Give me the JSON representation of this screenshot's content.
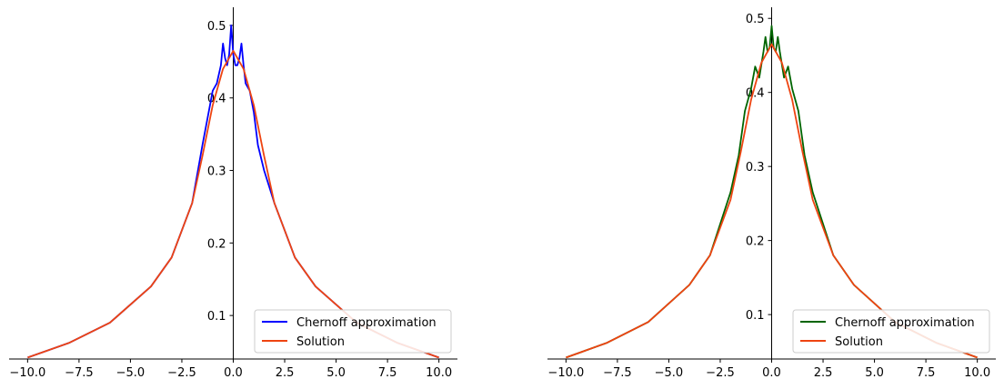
{
  "chart_data": [
    {
      "type": "line",
      "xlim": [
        -10,
        10
      ],
      "ylim": [
        0.04,
        0.525
      ],
      "xticks": [
        -10,
        -7.5,
        -5,
        -2.5,
        0,
        2.5,
        5,
        7.5,
        10
      ],
      "xtick_labels": [
        "−10.0",
        "−7.5",
        "−5.0",
        "−2.5",
        "0.0",
        "2.5",
        "5.0",
        "7.5",
        "10.0"
      ],
      "yticks": [
        0.1,
        0.2,
        0.3,
        0.4,
        0.5
      ],
      "ytick_labels": [
        "0.1",
        "0.2",
        "0.3",
        "0.4",
        "0.5"
      ],
      "spines": "left spine at x=0, bottom spine only",
      "grid": false,
      "legend_position": "lower right",
      "series": [
        {
          "name": "Chernoff approximation",
          "color": "#0000ff",
          "x": [
            -10,
            -8,
            -6,
            -4,
            -3,
            -2,
            -1.5,
            -1.2,
            -1,
            -0.8,
            -0.6,
            -0.5,
            -0.4,
            -0.3,
            -0.2,
            -0.1,
            0,
            0.1,
            0.2,
            0.3,
            0.4,
            0.5,
            0.6,
            0.8,
            1,
            1.2,
            1.5,
            2,
            3,
            4,
            6,
            8,
            10
          ],
          "y": [
            0.042,
            0.062,
            0.09,
            0.14,
            0.18,
            0.255,
            0.335,
            0.38,
            0.41,
            0.42,
            0.445,
            0.475,
            0.455,
            0.445,
            0.46,
            0.5,
            0.46,
            0.445,
            0.445,
            0.455,
            0.475,
            0.445,
            0.42,
            0.41,
            0.38,
            0.335,
            0.3,
            0.255,
            0.18,
            0.14,
            0.09,
            0.062,
            0.042
          ]
        },
        {
          "name": "Solution",
          "color": "#ee4411",
          "x": [
            -10,
            -8,
            -6,
            -4,
            -3,
            -2,
            -1.5,
            -1,
            -0.5,
            0,
            0.5,
            1,
            1.5,
            2,
            3,
            4,
            6,
            8,
            10
          ],
          "y": [
            0.042,
            0.062,
            0.09,
            0.14,
            0.18,
            0.255,
            0.32,
            0.39,
            0.44,
            0.465,
            0.44,
            0.39,
            0.32,
            0.255,
            0.18,
            0.14,
            0.09,
            0.062,
            0.042
          ]
        }
      ]
    },
    {
      "type": "line",
      "xlim": [
        -10,
        10
      ],
      "ylim": [
        0.04,
        0.515
      ],
      "xticks": [
        -10,
        -7.5,
        -5,
        -2.5,
        0,
        2.5,
        5,
        7.5,
        10
      ],
      "xtick_labels": [
        "−10.0",
        "−7.5",
        "−5.0",
        "−2.5",
        "0.0",
        "2.5",
        "5.0",
        "7.5",
        "10.0"
      ],
      "yticks": [
        0.1,
        0.2,
        0.3,
        0.4,
        0.5
      ],
      "ytick_labels": [
        "0.1",
        "0.2",
        "0.3",
        "0.4",
        "0.5"
      ],
      "spines": "left spine at x=0, bottom spine only",
      "grid": false,
      "legend_position": "lower right",
      "series": [
        {
          "name": "Chernoff approximation",
          "color": "#006400",
          "x": [
            -10,
            -8,
            -6,
            -4,
            -3,
            -2,
            -1.6,
            -1.3,
            -1,
            -0.8,
            -0.6,
            -0.4,
            -0.3,
            -0.2,
            -0.1,
            0,
            0.1,
            0.2,
            0.3,
            0.4,
            0.6,
            0.8,
            1,
            1.3,
            1.6,
            2,
            3,
            4,
            6,
            8,
            10
          ],
          "y": [
            0.042,
            0.062,
            0.09,
            0.14,
            0.18,
            0.265,
            0.315,
            0.375,
            0.405,
            0.435,
            0.42,
            0.455,
            0.475,
            0.455,
            0.46,
            0.49,
            0.46,
            0.455,
            0.475,
            0.455,
            0.42,
            0.435,
            0.405,
            0.375,
            0.315,
            0.265,
            0.18,
            0.14,
            0.09,
            0.062,
            0.042
          ]
        },
        {
          "name": "Solution",
          "color": "#ee4411",
          "x": [
            -10,
            -8,
            -6,
            -4,
            -3,
            -2,
            -1.5,
            -1,
            -0.5,
            0,
            0.5,
            1,
            1.5,
            2,
            3,
            4,
            6,
            8,
            10
          ],
          "y": [
            0.042,
            0.062,
            0.09,
            0.14,
            0.18,
            0.255,
            0.32,
            0.39,
            0.44,
            0.465,
            0.44,
            0.39,
            0.32,
            0.255,
            0.18,
            0.14,
            0.09,
            0.062,
            0.042
          ]
        }
      ]
    }
  ]
}
